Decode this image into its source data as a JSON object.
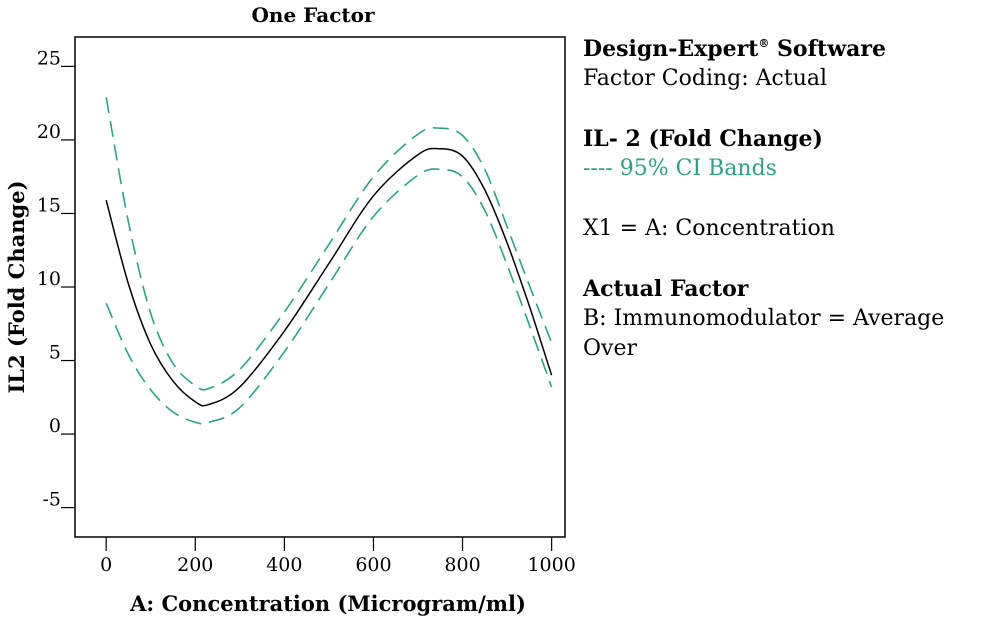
{
  "chart_data": {
    "type": "line",
    "title": "One Factor",
    "xlabel": "A: Concentration (Microgram/ml)",
    "ylabel": "IL2 (Fold Change)",
    "xlim": [
      -70,
      1030
    ],
    "ylim": [
      -7,
      27
    ],
    "x_ticks": [
      0,
      200,
      400,
      600,
      800,
      1000
    ],
    "y_ticks": [
      -5,
      0,
      5,
      10,
      15,
      20,
      25
    ],
    "grid": false,
    "series": [
      {
        "name": "IL- 2 (Fold Change)",
        "style": "solid",
        "color": "#000000",
        "x": [
          0,
          50,
          100,
          150,
          200,
          230,
          300,
          400,
          500,
          600,
          700,
          750,
          800,
          850,
          900,
          950,
          1000
        ],
        "y": [
          15.9,
          10.2,
          6.1,
          3.6,
          2.2,
          2.0,
          3.2,
          7.0,
          11.6,
          16.2,
          19.0,
          19.4,
          18.9,
          16.6,
          13.0,
          8.7,
          4.0
        ]
      },
      {
        "name": "95% CI Bands (upper)",
        "style": "dashed",
        "color": "#2aa383",
        "x": [
          0,
          50,
          100,
          150,
          200,
          230,
          300,
          400,
          500,
          600,
          700,
          750,
          800,
          850,
          900,
          950,
          1000
        ],
        "y": [
          22.9,
          14.4,
          8.2,
          4.8,
          3.3,
          3.1,
          4.4,
          8.3,
          12.9,
          17.5,
          20.4,
          20.8,
          20.3,
          18.0,
          14.1,
          10.1,
          6.2
        ]
      },
      {
        "name": "95% CI Bands (lower)",
        "style": "dashed",
        "color": "#2aa383",
        "x": [
          0,
          50,
          100,
          150,
          200,
          230,
          300,
          400,
          500,
          600,
          700,
          750,
          800,
          850,
          900,
          950,
          1000
        ],
        "y": [
          8.9,
          5.4,
          3.0,
          1.5,
          0.8,
          0.8,
          1.8,
          5.6,
          10.2,
          14.8,
          17.6,
          18.0,
          17.5,
          15.2,
          11.5,
          7.4,
          3.2
        ]
      }
    ]
  },
  "info_panel": {
    "software_name": "Design-Expert",
    "software_reg": "®",
    "software_suffix": " Software",
    "factor_coding": "Factor Coding: Actual",
    "response_title": "IL- 2 (Fold Change)",
    "ci_line": "---- 95% CI Bands",
    "x1_line": "X1 = A: Concentration",
    "actual_factor_title": "Actual Factor",
    "actual_factor_line": "B: Immunomodulator = Average Over"
  },
  "colors": {
    "fit_line": "#000000",
    "ci_bands": "#2aa383"
  }
}
